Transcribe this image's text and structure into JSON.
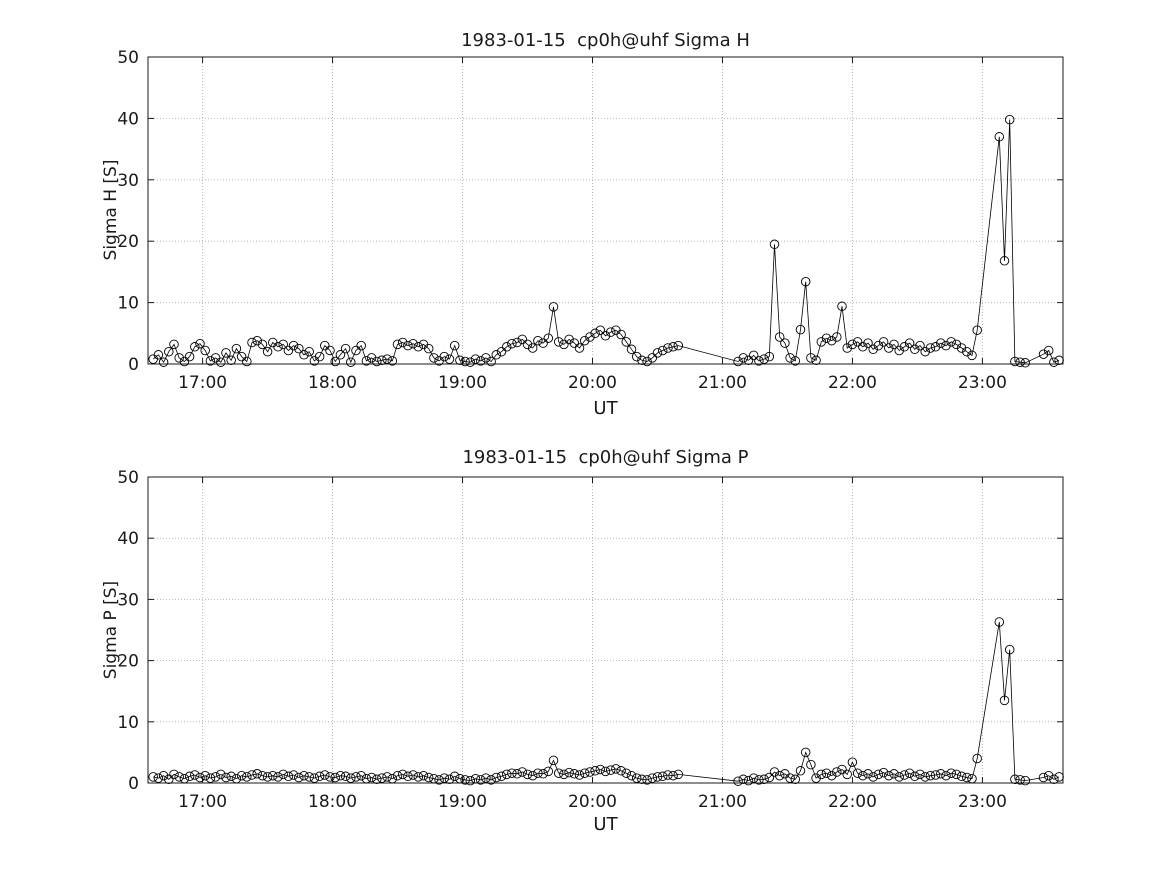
{
  "figure": {
    "background": "#ffffff",
    "text_color": "#1a1a1a",
    "grid_color": "#b8b8b8"
  },
  "chart_data": [
    {
      "type": "line",
      "title": "1983-01-15  cp0h@uhf Sigma H",
      "xlabel": "UT",
      "ylabel": "Sigma H [S]",
      "xlim": [
        16.58,
        23.62
      ],
      "ylim": [
        0,
        50
      ],
      "x_tick_values": [
        17,
        18,
        19,
        20,
        21,
        22,
        23
      ],
      "x_tick_labels": [
        "17:00",
        "18:00",
        "19:00",
        "20:00",
        "21:00",
        "22:00",
        "23:00"
      ],
      "y_ticks": [
        0,
        10,
        20,
        30,
        40,
        50
      ],
      "marker": "open-circle",
      "line_color": "#000000",
      "grid": true,
      "legend": "none",
      "x": [
        16.62,
        16.66,
        16.7,
        16.74,
        16.78,
        16.82,
        16.86,
        16.9,
        16.94,
        16.98,
        17.02,
        17.06,
        17.1,
        17.14,
        17.18,
        17.22,
        17.26,
        17.3,
        17.34,
        17.38,
        17.42,
        17.46,
        17.5,
        17.54,
        17.58,
        17.62,
        17.66,
        17.7,
        17.74,
        17.78,
        17.82,
        17.86,
        17.9,
        17.94,
        17.98,
        18.02,
        18.06,
        18.1,
        18.14,
        18.18,
        18.22,
        18.26,
        18.3,
        18.34,
        18.38,
        18.42,
        18.46,
        18.5,
        18.54,
        18.58,
        18.62,
        18.66,
        18.7,
        18.74,
        18.78,
        18.82,
        18.86,
        18.9,
        18.94,
        18.98,
        19.02,
        19.06,
        19.1,
        19.14,
        19.18,
        19.22,
        19.26,
        19.3,
        19.34,
        19.38,
        19.42,
        19.46,
        19.5,
        19.54,
        19.58,
        19.62,
        19.66,
        19.7,
        19.74,
        19.78,
        19.82,
        19.86,
        19.9,
        19.94,
        19.98,
        20.02,
        20.06,
        20.1,
        20.14,
        20.18,
        20.22,
        20.26,
        20.3,
        20.34,
        20.38,
        20.42,
        20.46,
        20.5,
        20.54,
        20.58,
        20.62,
        20.66,
        21.12,
        21.16,
        21.2,
        21.24,
        21.28,
        21.32,
        21.36,
        21.4,
        21.44,
        21.48,
        21.52,
        21.56,
        21.6,
        21.64,
        21.68,
        21.72,
        21.76,
        21.8,
        21.84,
        21.88,
        21.92,
        21.96,
        22.0,
        22.04,
        22.08,
        22.12,
        22.16,
        22.2,
        22.24,
        22.28,
        22.32,
        22.36,
        22.4,
        22.44,
        22.48,
        22.52,
        22.56,
        22.6,
        22.64,
        22.68,
        22.72,
        22.76,
        22.8,
        22.84,
        22.88,
        22.92,
        22.96,
        23.13,
        23.17,
        23.21,
        23.25,
        23.29,
        23.33,
        23.47,
        23.51,
        23.55,
        23.59
      ],
      "values": [
        0.8,
        1.5,
        0.3,
        2.0,
        3.2,
        1.0,
        0.4,
        1.2,
        2.8,
        3.3,
        2.2,
        0.5,
        1.0,
        0.3,
        1.8,
        0.6,
        2.5,
        1.2,
        0.4,
        3.5,
        3.8,
        3.2,
        2.0,
        3.5,
        2.8,
        3.2,
        2.2,
        3.0,
        2.5,
        1.5,
        2.0,
        0.5,
        1.2,
        3.0,
        2.2,
        0.4,
        1.5,
        2.5,
        0.3,
        2.2,
        3.0,
        0.5,
        1.0,
        0.4,
        0.6,
        0.8,
        0.5,
        3.2,
        3.5,
        3.0,
        3.3,
        2.8,
        3.2,
        2.5,
        1.0,
        0.5,
        1.2,
        0.8,
        3.0,
        0.6,
        0.4,
        0.3,
        0.8,
        0.5,
        1.0,
        0.4,
        1.5,
        2.0,
        2.8,
        3.3,
        3.5,
        4.0,
        3.2,
        2.6,
        3.8,
        3.4,
        4.2,
        9.3,
        3.6,
        3.2,
        4.0,
        3.4,
        2.6,
        3.8,
        4.4,
        5.0,
        5.5,
        4.6,
        5.2,
        5.5,
        4.8,
        3.6,
        2.4,
        1.2,
        0.6,
        0.4,
        1.0,
        1.8,
        2.2,
        2.6,
        2.8,
        3.0,
        0.4,
        1.0,
        0.6,
        1.4,
        0.5,
        0.8,
        1.2,
        19.5,
        4.4,
        3.4,
        1.0,
        0.5,
        5.6,
        13.4,
        1.0,
        0.6,
        3.6,
        4.2,
        3.8,
        4.4,
        9.4,
        2.6,
        3.2,
        3.6,
        2.8,
        3.4,
        2.4,
        3.0,
        3.6,
        2.6,
        3.2,
        2.2,
        2.8,
        3.4,
        2.4,
        3.0,
        2.0,
        2.6,
        2.8,
        3.4,
        3.0,
        3.6,
        3.2,
        2.6,
        2.0,
        1.4,
        5.5,
        37.0,
        16.8,
        39.8,
        0.4,
        0.3,
        0.2,
        1.6,
        2.2,
        0.3,
        0.6
      ]
    },
    {
      "type": "line",
      "title": "1983-01-15  cp0h@uhf Sigma P",
      "xlabel": "UT",
      "ylabel": "Sigma P [S]",
      "xlim": [
        16.58,
        23.62
      ],
      "ylim": [
        0,
        50
      ],
      "x_tick_values": [
        17,
        18,
        19,
        20,
        21,
        22,
        23
      ],
      "x_tick_labels": [
        "17:00",
        "18:00",
        "19:00",
        "20:00",
        "21:00",
        "22:00",
        "23:00"
      ],
      "y_ticks": [
        0,
        10,
        20,
        30,
        40,
        50
      ],
      "marker": "open-circle",
      "line_color": "#000000",
      "grid": true,
      "legend": "none",
      "x": [
        16.62,
        16.66,
        16.7,
        16.74,
        16.78,
        16.82,
        16.86,
        16.9,
        16.94,
        16.98,
        17.02,
        17.06,
        17.1,
        17.14,
        17.18,
        17.22,
        17.26,
        17.3,
        17.34,
        17.38,
        17.42,
        17.46,
        17.5,
        17.54,
        17.58,
        17.62,
        17.66,
        17.7,
        17.74,
        17.78,
        17.82,
        17.86,
        17.9,
        17.94,
        17.98,
        18.02,
        18.06,
        18.1,
        18.14,
        18.18,
        18.22,
        18.26,
        18.3,
        18.34,
        18.38,
        18.42,
        18.46,
        18.5,
        18.54,
        18.58,
        18.62,
        18.66,
        18.7,
        18.74,
        18.78,
        18.82,
        18.86,
        18.9,
        18.94,
        18.98,
        19.02,
        19.06,
        19.1,
        19.14,
        19.18,
        19.22,
        19.26,
        19.3,
        19.34,
        19.38,
        19.42,
        19.46,
        19.5,
        19.54,
        19.58,
        19.62,
        19.66,
        19.7,
        19.74,
        19.78,
        19.82,
        19.86,
        19.9,
        19.94,
        19.98,
        20.02,
        20.06,
        20.1,
        20.14,
        20.18,
        20.22,
        20.26,
        20.3,
        20.34,
        20.38,
        20.42,
        20.46,
        20.5,
        20.54,
        20.58,
        20.62,
        20.66,
        21.12,
        21.16,
        21.2,
        21.24,
        21.28,
        21.32,
        21.36,
        21.4,
        21.44,
        21.48,
        21.52,
        21.56,
        21.6,
        21.64,
        21.68,
        21.72,
        21.76,
        21.8,
        21.84,
        21.88,
        21.92,
        21.96,
        22.0,
        22.04,
        22.08,
        22.12,
        22.16,
        22.2,
        22.24,
        22.28,
        22.32,
        22.36,
        22.4,
        22.44,
        22.48,
        22.52,
        22.56,
        22.6,
        22.64,
        22.68,
        22.72,
        22.76,
        22.8,
        22.84,
        22.88,
        22.92,
        22.96,
        23.13,
        23.17,
        23.21,
        23.25,
        23.29,
        23.33,
        23.47,
        23.51,
        23.55,
        23.59
      ],
      "values": [
        1.0,
        0.8,
        1.2,
        0.6,
        1.4,
        1.0,
        0.7,
        1.1,
        1.3,
        0.9,
        1.2,
        0.8,
        1.0,
        1.4,
        0.9,
        1.1,
        0.7,
        1.2,
        1.0,
        1.3,
        1.5,
        1.2,
        1.0,
        1.2,
        1.0,
        1.4,
        1.1,
        1.3,
        0.9,
        1.2,
        1.0,
        0.8,
        1.1,
        1.3,
        1.0,
        0.9,
        1.2,
        1.1,
        0.8,
        1.0,
        1.2,
        0.7,
        0.9,
        0.6,
        0.8,
        1.0,
        0.7,
        1.2,
        1.4,
        1.1,
        1.3,
        1.0,
        1.2,
        0.9,
        0.7,
        0.5,
        0.8,
        0.6,
        1.1,
        0.7,
        0.5,
        0.4,
        0.7,
        0.5,
        0.8,
        0.5,
        0.9,
        1.1,
        1.4,
        1.6,
        1.5,
        1.8,
        1.4,
        1.2,
        1.6,
        1.5,
        1.9,
        3.7,
        1.6,
        1.4,
        1.7,
        1.5,
        1.3,
        1.6,
        1.8,
        2.0,
        2.2,
        1.9,
        2.1,
        2.3,
        2.0,
        1.6,
        1.2,
        0.8,
        0.6,
        0.5,
        0.8,
        1.0,
        1.1,
        1.3,
        1.2,
        1.4,
        0.3,
        0.6,
        0.4,
        0.8,
        0.5,
        0.6,
        0.9,
        1.8,
        1.2,
        1.5,
        0.8,
        0.6,
        2.0,
        5.0,
        3.0,
        0.8,
        1.4,
        1.6,
        1.2,
        1.8,
        2.2,
        1.4,
        3.4,
        1.6,
        1.2,
        1.5,
        1.0,
        1.4,
        1.7,
        1.2,
        1.5,
        1.0,
        1.3,
        1.6,
        1.1,
        1.4,
        1.0,
        1.2,
        1.3,
        1.5,
        1.2,
        1.6,
        1.4,
        1.1,
        0.9,
        0.7,
        4.0,
        26.3,
        13.5,
        21.8,
        0.6,
        0.5,
        0.4,
        0.9,
        1.2,
        0.6,
        1.0
      ]
    }
  ]
}
